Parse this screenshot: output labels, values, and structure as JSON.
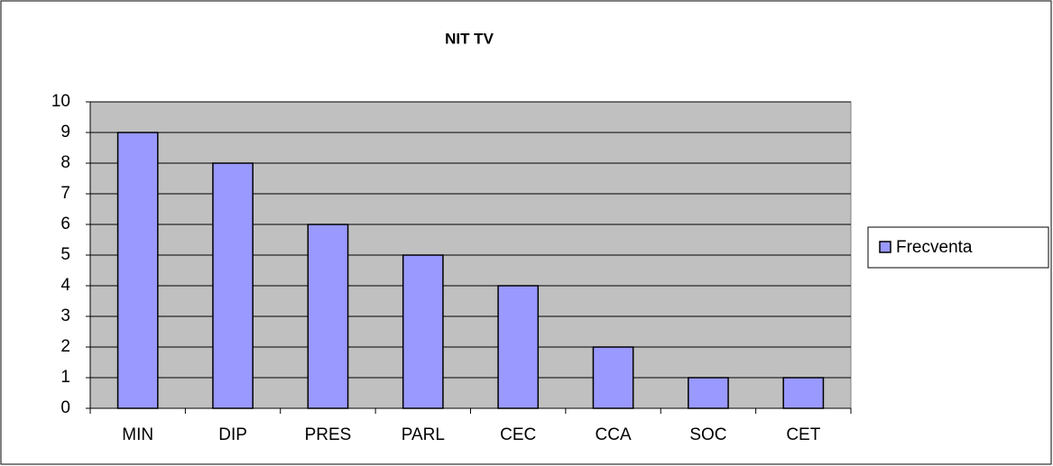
{
  "chart_data": {
    "type": "bar",
    "title": "NIT TV",
    "categories": [
      "MIN",
      "DIP",
      "PRES",
      "PARL",
      "CEC",
      "CCA",
      "SOC",
      "CET"
    ],
    "series": [
      {
        "name": "Frecventa",
        "color": "#9999ff",
        "values": [
          9,
          8,
          6,
          5,
          4,
          2,
          1,
          1
        ]
      }
    ],
    "ylim": [
      0,
      10
    ],
    "yticks": [
      0,
      1,
      2,
      3,
      4,
      5,
      6,
      7,
      8,
      9,
      10
    ],
    "grid": true,
    "legend": "right"
  }
}
